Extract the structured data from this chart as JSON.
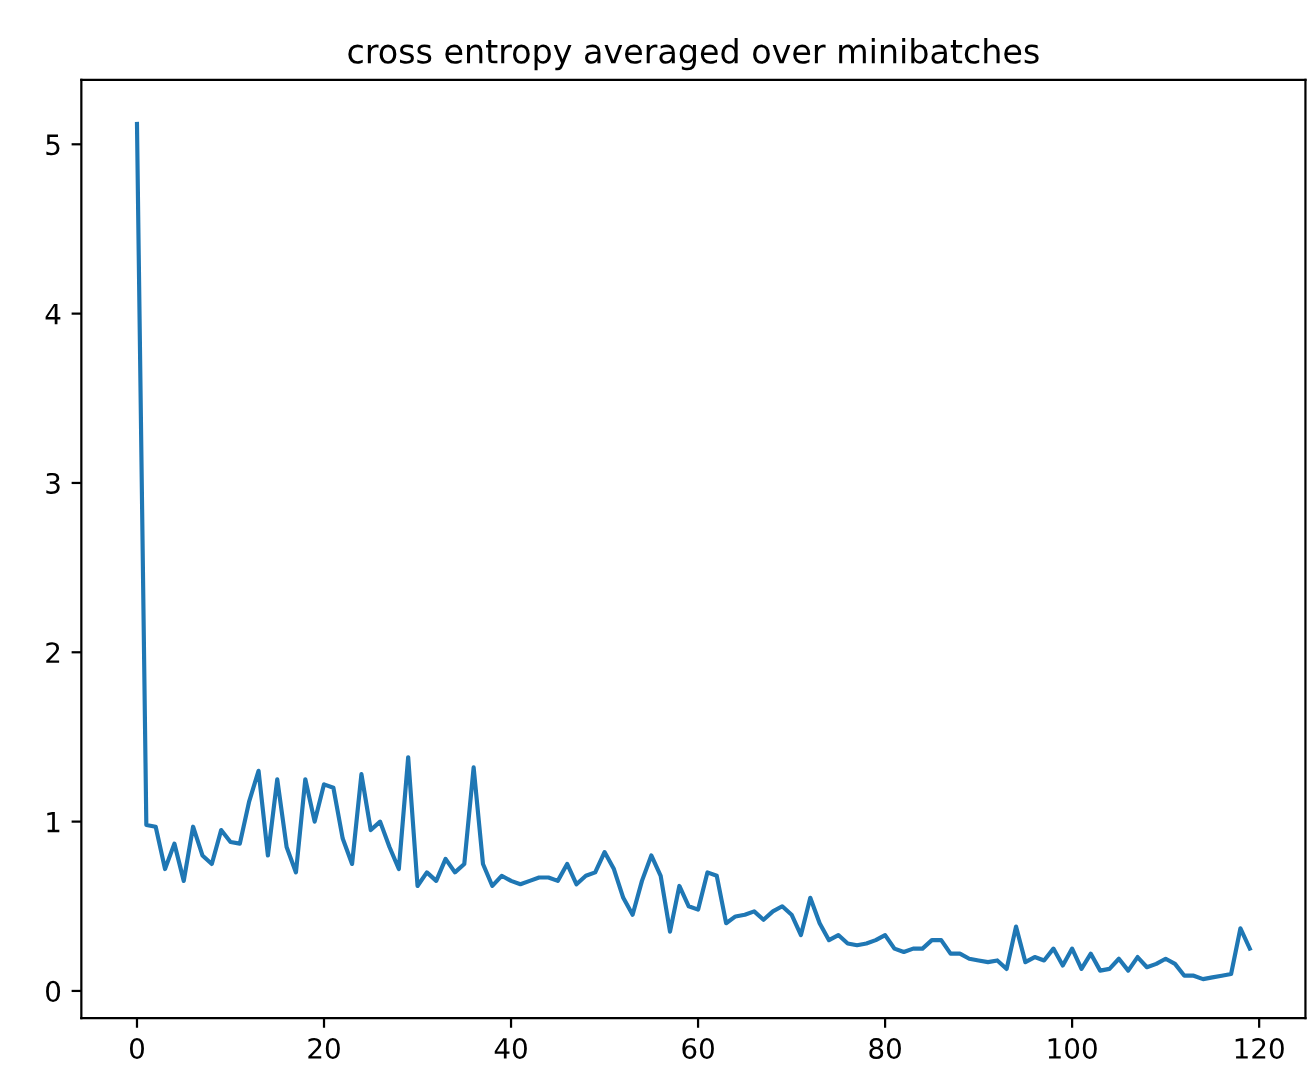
{
  "chart_data": {
    "type": "line",
    "title": "cross entropy averaged over minibatches",
    "x": [
      0,
      1,
      2,
      3,
      4,
      5,
      6,
      7,
      8,
      9,
      10,
      11,
      12,
      13,
      14,
      15,
      16,
      17,
      18,
      19,
      20,
      21,
      22,
      23,
      24,
      25,
      26,
      27,
      28,
      29,
      30,
      31,
      32,
      33,
      34,
      35,
      36,
      37,
      38,
      39,
      40,
      41,
      42,
      43,
      44,
      45,
      46,
      47,
      48,
      49,
      50,
      51,
      52,
      53,
      54,
      55,
      56,
      57,
      58,
      59,
      60,
      61,
      62,
      63,
      64,
      65,
      66,
      67,
      68,
      69,
      70,
      71,
      72,
      73,
      74,
      75,
      76,
      77,
      78,
      79,
      80,
      81,
      82,
      83,
      84,
      85,
      86,
      87,
      88,
      89,
      90,
      91,
      92,
      93,
      94,
      95,
      96,
      97,
      98,
      99,
      100,
      101,
      102,
      103,
      104,
      105,
      106,
      107,
      108,
      109,
      110,
      111,
      112,
      113,
      114,
      115,
      116,
      117,
      118,
      119
    ],
    "series": [
      {
        "color": "#1f77b4",
        "values": [
          5.12,
          0.98,
          0.97,
          0.72,
          0.87,
          0.65,
          0.97,
          0.8,
          0.75,
          0.95,
          0.88,
          0.87,
          1.12,
          1.3,
          0.8,
          1.25,
          0.85,
          0.7,
          1.25,
          1.0,
          1.22,
          1.2,
          0.9,
          0.75,
          1.28,
          0.95,
          1.0,
          0.85,
          0.72,
          1.38,
          0.62,
          0.7,
          0.65,
          0.78,
          0.7,
          0.75,
          1.32,
          0.75,
          0.62,
          0.68,
          0.65,
          0.63,
          0.65,
          0.67,
          0.67,
          0.65,
          0.75,
          0.63,
          0.68,
          0.7,
          0.82,
          0.72,
          0.55,
          0.45,
          0.65,
          0.8,
          0.68,
          0.35,
          0.62,
          0.5,
          0.48,
          0.7,
          0.68,
          0.4,
          0.44,
          0.45,
          0.47,
          0.42,
          0.47,
          0.5,
          0.45,
          0.33,
          0.55,
          0.4,
          0.3,
          0.33,
          0.28,
          0.27,
          0.28,
          0.3,
          0.33,
          0.25,
          0.23,
          0.25,
          0.25,
          0.3,
          0.3,
          0.22,
          0.22,
          0.19,
          0.18,
          0.17,
          0.18,
          0.13,
          0.38,
          0.17,
          0.2,
          0.18,
          0.25,
          0.15,
          0.25,
          0.13,
          0.22,
          0.12,
          0.13,
          0.19,
          0.12,
          0.2,
          0.14,
          0.16,
          0.19,
          0.16,
          0.09,
          0.09,
          0.07,
          0.08,
          0.09,
          0.1,
          0.37,
          0.25
        ]
      }
    ],
    "xlim": [
      -5.95,
      124.95
    ],
    "ylim": [
      -0.16,
      5.38
    ],
    "xticks": [
      0,
      20,
      40,
      60,
      80,
      100,
      120
    ],
    "yticks": [
      0,
      1,
      2,
      3,
      4,
      5
    ],
    "grid": false,
    "marker": "none",
    "line_style": "solid"
  }
}
